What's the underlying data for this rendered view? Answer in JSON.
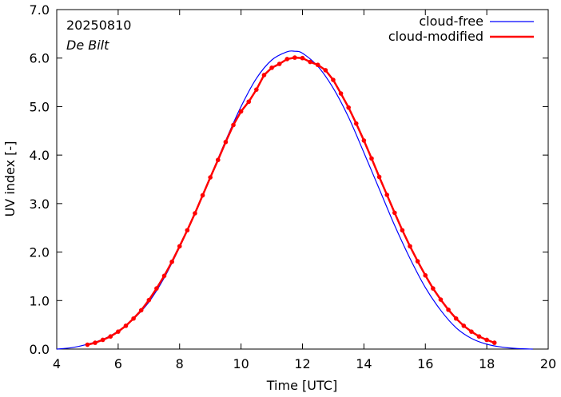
{
  "chart_data": {
    "type": "line",
    "annotations": {
      "date": "20250810",
      "location": "De Bilt"
    },
    "xlabel": "Time  [UTC]",
    "ylabel": "UV index  [-]",
    "xlim": [
      4,
      20
    ],
    "ylim": [
      0,
      7
    ],
    "xticks": [
      4,
      6,
      8,
      10,
      12,
      14,
      16,
      18,
      20
    ],
    "yticks": [
      0,
      1,
      2,
      3,
      4,
      5,
      6,
      7
    ],
    "ytick_labels": [
      "0.0",
      "1.0",
      "2.0",
      "3.0",
      "4.0",
      "5.0",
      "6.0",
      "7.0"
    ],
    "grid": false,
    "legend_position": "top-right",
    "series": [
      {
        "name": "cloud-free",
        "color": "#0000ff",
        "markers": false,
        "x": [
          4.0,
          4.5,
          5.0,
          5.5,
          6.0,
          6.5,
          7.0,
          7.5,
          8.0,
          8.5,
          9.0,
          9.5,
          10.0,
          10.5,
          11.0,
          11.5,
          11.75,
          12.0,
          12.5,
          13.0,
          13.5,
          14.0,
          14.5,
          15.0,
          15.5,
          16.0,
          16.5,
          17.0,
          17.5,
          18.0,
          18.5,
          19.0,
          19.5
        ],
        "y": [
          0.0,
          0.03,
          0.1,
          0.2,
          0.37,
          0.62,
          0.97,
          1.47,
          2.1,
          2.8,
          3.55,
          4.3,
          5.0,
          5.58,
          5.96,
          6.13,
          6.14,
          6.1,
          5.83,
          5.38,
          4.78,
          4.05,
          3.3,
          2.55,
          1.87,
          1.27,
          0.8,
          0.44,
          0.22,
          0.1,
          0.04,
          0.01,
          0.0
        ]
      },
      {
        "name": "cloud-modified",
        "color": "#ff0000",
        "markers": true,
        "x": [
          5.0,
          5.25,
          5.5,
          5.75,
          6.0,
          6.25,
          6.5,
          6.75,
          7.0,
          7.25,
          7.5,
          7.75,
          8.0,
          8.25,
          8.5,
          8.75,
          9.0,
          9.25,
          9.5,
          9.75,
          10.0,
          10.25,
          10.5,
          10.75,
          11.0,
          11.25,
          11.5,
          11.75,
          12.0,
          12.25,
          12.5,
          12.75,
          13.0,
          13.25,
          13.5,
          13.75,
          14.0,
          14.25,
          14.5,
          14.75,
          15.0,
          15.25,
          15.5,
          15.75,
          16.0,
          16.25,
          16.5,
          16.75,
          17.0,
          17.25,
          17.5,
          17.75,
          18.0,
          18.25
        ],
        "y": [
          0.09,
          0.13,
          0.19,
          0.26,
          0.36,
          0.48,
          0.63,
          0.8,
          1.01,
          1.25,
          1.51,
          1.8,
          2.12,
          2.45,
          2.8,
          3.17,
          3.54,
          3.9,
          4.27,
          4.62,
          4.9,
          5.1,
          5.35,
          5.65,
          5.8,
          5.88,
          5.98,
          6.01,
          6.0,
          5.92,
          5.86,
          5.75,
          5.55,
          5.27,
          4.98,
          4.65,
          4.3,
          3.93,
          3.55,
          3.18,
          2.81,
          2.45,
          2.12,
          1.81,
          1.52,
          1.25,
          1.02,
          0.81,
          0.63,
          0.48,
          0.36,
          0.26,
          0.19,
          0.13
        ]
      }
    ]
  }
}
